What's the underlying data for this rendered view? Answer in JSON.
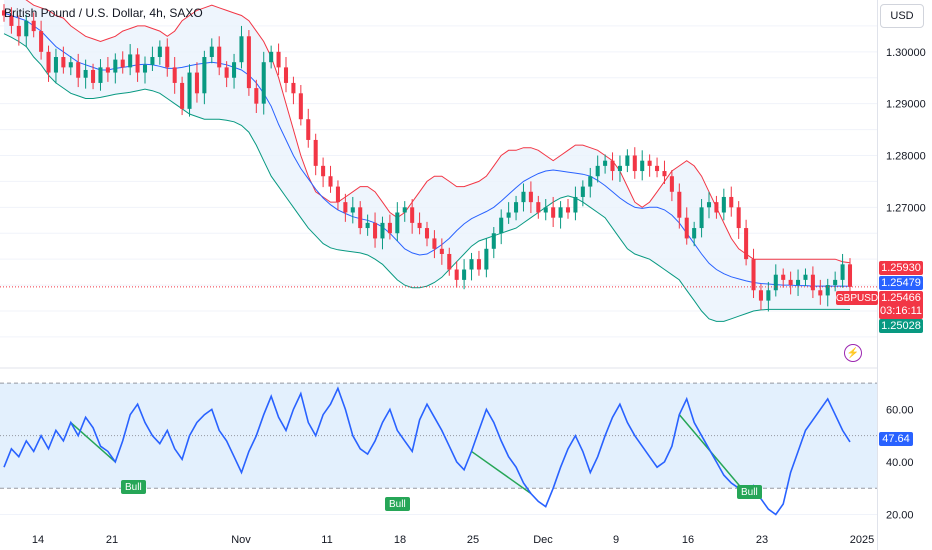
{
  "header": {
    "title": "British Pound / U.S. Dollar, 4h, SAXO",
    "currency_button": "USD"
  },
  "price_tags": {
    "upper_band": "1.25930",
    "basis": "1.25479",
    "symbol": "GBPUSD",
    "last_price": "1.25466",
    "countdown": "03:16:11",
    "lower_band": "1.25028"
  },
  "rsi_tag": "47.64",
  "bull_labels": [
    "Bull",
    "Bull",
    "Bull"
  ],
  "colors": {
    "up": "#089981",
    "down": "#f23645",
    "upper_band": "#f23645",
    "lower_band": "#089981",
    "basis": "#2962ff",
    "band_fill": "#eaf3fd",
    "rsi_line": "#2962ff",
    "rsi_fill": "#e3f0fd",
    "bull": "#26a657"
  },
  "chart_data": [
    {
      "type": "candlestick",
      "title": "British Pound / U.S. Dollar, 4h, SAXO",
      "overlays": [
        "Bollinger Bands upper",
        "Bollinger Bands basis",
        "Bollinger Bands lower"
      ],
      "x_ticks": [
        "14",
        "21",
        "Nov",
        "11",
        "18",
        "25",
        "Dec",
        "9",
        "16",
        "23",
        "2025"
      ],
      "y_ticks": [
        "1.30000",
        "1.29000",
        "1.28000",
        "1.27000"
      ],
      "ylim": [
        1.239,
        1.31
      ],
      "grid": true,
      "series": {
        "close": [
          1.307,
          1.305,
          1.303,
          1.306,
          1.304,
          1.3,
          1.296,
          1.299,
          1.297,
          1.298,
          1.295,
          1.2965,
          1.294,
          1.297,
          1.296,
          1.2985,
          1.297,
          1.2995,
          1.296,
          1.2975,
          1.299,
          1.301,
          1.297,
          1.294,
          1.289,
          1.296,
          1.292,
          1.299,
          1.301,
          1.297,
          1.295,
          1.298,
          1.303,
          1.293,
          1.29,
          1.298,
          1.3,
          1.297,
          1.294,
          1.292,
          1.287,
          1.283,
          1.278,
          1.276,
          1.274,
          1.271,
          1.269,
          1.27,
          1.266,
          1.267,
          1.264,
          1.267,
          1.265,
          1.269,
          1.27,
          1.267,
          1.266,
          1.264,
          1.262,
          1.261,
          1.258,
          1.256,
          1.258,
          1.26,
          1.258,
          1.262,
          1.265,
          1.268,
          1.269,
          1.271,
          1.273,
          1.271,
          1.269,
          1.27,
          1.268,
          1.27,
          1.269,
          1.272,
          1.274,
          1.276,
          1.278,
          1.279,
          1.277,
          1.278,
          1.28,
          1.277,
          1.279,
          1.278,
          1.277,
          1.276,
          1.273,
          1.268,
          1.264,
          1.266,
          1.27,
          1.271,
          1.269,
          1.272,
          1.27,
          1.266,
          1.26,
          1.254,
          1.252,
          1.254,
          1.257,
          1.256,
          1.255,
          1.256,
          1.257,
          1.254,
          1.253,
          1.255,
          1.256,
          1.259,
          1.25466
        ],
        "upper": [
          1.3115,
          1.3112,
          1.311,
          1.31,
          1.309,
          1.3085,
          1.308,
          1.307,
          1.3065,
          1.305,
          1.304,
          1.303,
          1.3025,
          1.302,
          1.3025,
          1.303,
          1.304,
          1.3045,
          1.305,
          1.305,
          1.3045,
          1.304,
          1.303,
          1.304,
          1.306,
          1.307,
          1.308,
          1.3085,
          1.309,
          1.3085,
          1.308,
          1.3075,
          1.307,
          1.306,
          1.304,
          1.302,
          1.299,
          1.295,
          1.29,
          1.285,
          1.28,
          1.276,
          1.273,
          1.272,
          1.271,
          1.271,
          1.272,
          1.273,
          1.274,
          1.274,
          1.273,
          1.271,
          1.269,
          1.268,
          1.269,
          1.271,
          1.273,
          1.275,
          1.276,
          1.276,
          1.275,
          1.274,
          1.274,
          1.2745,
          1.275,
          1.276,
          1.278,
          1.28,
          1.281,
          1.281,
          1.2815,
          1.2815,
          1.281,
          1.28,
          1.279,
          1.28,
          1.281,
          1.282,
          1.282,
          1.2815,
          1.281,
          1.28,
          1.279,
          1.277,
          1.274,
          1.271,
          1.27,
          1.271,
          1.273,
          1.275,
          1.277,
          1.278,
          1.279,
          1.278,
          1.276,
          1.273,
          1.27,
          1.267,
          1.264,
          1.262,
          1.261,
          1.26,
          1.26,
          1.26,
          1.26,
          1.26,
          1.26,
          1.26,
          1.26,
          1.26,
          1.26,
          1.26,
          1.26,
          1.2595,
          1.2593
        ],
        "basis": [
          1.3075,
          1.307,
          1.3065,
          1.306,
          1.305,
          1.304,
          1.3025,
          1.301,
          1.3,
          1.299,
          1.298,
          1.2975,
          1.297,
          1.2965,
          1.2965,
          1.2968,
          1.297,
          1.2972,
          1.2975,
          1.2976,
          1.2975,
          1.2972,
          1.2968,
          1.2968,
          1.297,
          1.2973,
          1.2976,
          1.2978,
          1.298,
          1.2978,
          1.2975,
          1.297,
          1.2965,
          1.2955,
          1.294,
          1.292,
          1.2895,
          1.286,
          1.283,
          1.28,
          1.2775,
          1.2755,
          1.2735,
          1.2718,
          1.2705,
          1.2695,
          1.2688,
          1.2682,
          1.2678,
          1.2675,
          1.267,
          1.2662,
          1.265,
          1.2635,
          1.262,
          1.2612,
          1.2608,
          1.261,
          1.2618,
          1.2628,
          1.264,
          1.2655,
          1.2668,
          1.2678,
          1.2685,
          1.2692,
          1.27,
          1.2712,
          1.2725,
          1.2738,
          1.275,
          1.2758,
          1.2765,
          1.277,
          1.2772,
          1.277,
          1.2768,
          1.2766,
          1.2764,
          1.276,
          1.2752,
          1.2742,
          1.273,
          1.2718,
          1.2708,
          1.27,
          1.2698,
          1.27,
          1.27,
          1.2695,
          1.2685,
          1.267,
          1.265,
          1.263,
          1.261,
          1.2592,
          1.258,
          1.2572,
          1.2566,
          1.2562,
          1.2558,
          1.2555,
          1.2553,
          1.2552,
          1.2551,
          1.255,
          1.255,
          1.2549,
          1.2549,
          1.2548,
          1.2548,
          1.2548,
          1.2548,
          1.2548,
          1.25479
        ],
        "lower": [
          1.3035,
          1.3028,
          1.302,
          1.301,
          1.299,
          1.2975,
          1.2955,
          1.294,
          1.293,
          1.292,
          1.2915,
          1.291,
          1.291,
          1.2912,
          1.2915,
          1.2918,
          1.292,
          1.2922,
          1.2925,
          1.2928,
          1.2925,
          1.292,
          1.291,
          1.29,
          1.289,
          1.288,
          1.2875,
          1.287,
          1.287,
          1.287,
          1.2868,
          1.2865,
          1.2858,
          1.2845,
          1.282,
          1.279,
          1.276,
          1.274,
          1.272,
          1.27,
          1.268,
          1.266,
          1.2645,
          1.263,
          1.2622,
          1.2618,
          1.2616,
          1.2614,
          1.2612,
          1.2608,
          1.26,
          1.259,
          1.2575,
          1.256,
          1.255,
          1.2545,
          1.2545,
          1.2548,
          1.2555,
          1.2565,
          1.258,
          1.2595,
          1.261,
          1.2625,
          1.2635,
          1.264,
          1.2645,
          1.265,
          1.2655,
          1.266,
          1.267,
          1.268,
          1.269,
          1.27,
          1.271,
          1.2718,
          1.2722,
          1.2718,
          1.271,
          1.27,
          1.269,
          1.268,
          1.266,
          1.264,
          1.262,
          1.261,
          1.2605,
          1.26,
          1.259,
          1.258,
          1.257,
          1.256,
          1.254,
          1.252,
          1.25,
          1.2485,
          1.248,
          1.248,
          1.2485,
          1.249,
          1.2495,
          1.25,
          1.2502,
          1.2503,
          1.2503,
          1.2503,
          1.2503,
          1.2503,
          1.2503,
          1.2503,
          1.2503,
          1.2503,
          1.2503,
          1.2503,
          1.25028
        ]
      }
    },
    {
      "type": "line",
      "x_ticks": [
        "14",
        "21",
        "Nov",
        "11",
        "18",
        "25",
        "Dec",
        "9",
        "16",
        "23",
        "2025"
      ],
      "y_ticks": [
        "60.00",
        "40.00",
        "20.00"
      ],
      "ylim": [
        16,
        75
      ],
      "band": [
        30,
        70
      ],
      "midline": 50,
      "series": [
        {
          "values": [
            38,
            45,
            42,
            48,
            44,
            50,
            45,
            52,
            48,
            55,
            50,
            57,
            53,
            46,
            44,
            40,
            48,
            58,
            62,
            55,
            50,
            47,
            52,
            45,
            41,
            50,
            55,
            58,
            60,
            52,
            48,
            42,
            36,
            44,
            50,
            58,
            65,
            57,
            52,
            60,
            66,
            55,
            50,
            58,
            62,
            68,
            60,
            50,
            45,
            43,
            48,
            55,
            60,
            52,
            48,
            44,
            56,
            62,
            57,
            52,
            46,
            40,
            37,
            44,
            52,
            60,
            55,
            48,
            42,
            38,
            32,
            28,
            25,
            23,
            30,
            38,
            45,
            50,
            44,
            36,
            42,
            50,
            57,
            62,
            55,
            50,
            46,
            42,
            38,
            40,
            46,
            58,
            64,
            55,
            50,
            45,
            40,
            35,
            32,
            30,
            28,
            31,
            26,
            22,
            20,
            24,
            36,
            44,
            52,
            56,
            60,
            64,
            58,
            52,
            47.64
          ],
          "color": "#2962ff"
        }
      ]
    }
  ]
}
